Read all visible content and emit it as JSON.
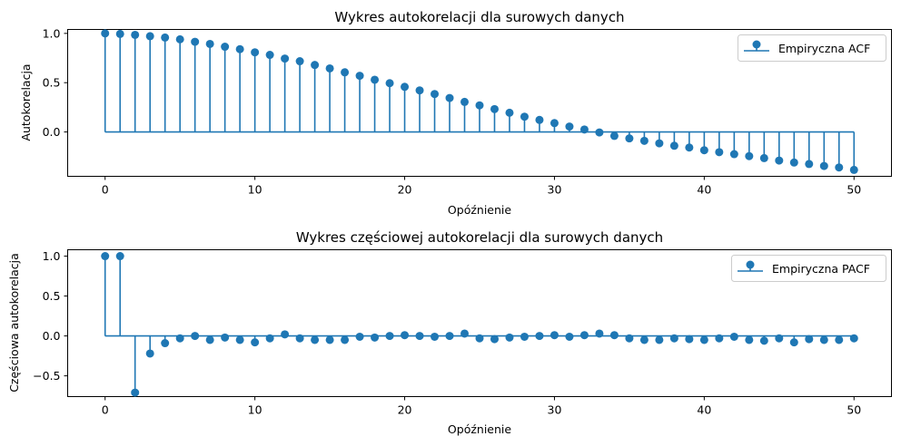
{
  "chart_data": [
    {
      "type": "stem",
      "title": "Wykres autokorelacji dla surowych danych",
      "xlabel": "Opóźnienie",
      "ylabel": "Autokorelacja",
      "xlim": [
        -2.5,
        52.5
      ],
      "ylim": [
        -0.45,
        1.04
      ],
      "xticks": [
        0,
        10,
        20,
        30,
        40,
        50
      ],
      "yticks": [
        0.0,
        0.5,
        1.0
      ],
      "ytick_labels": [
        "0.0",
        "0.5",
        "1.0"
      ],
      "grid": false,
      "legend_position": "top-right",
      "color": "#1f77b4",
      "series": [
        {
          "name": "Empiryczna ACF",
          "x": [
            0,
            1,
            2,
            3,
            4,
            5,
            6,
            7,
            8,
            9,
            10,
            11,
            12,
            13,
            14,
            15,
            16,
            17,
            18,
            19,
            20,
            21,
            22,
            23,
            24,
            25,
            26,
            27,
            28,
            29,
            30,
            31,
            32,
            33,
            34,
            35,
            36,
            37,
            38,
            39,
            40,
            41,
            42,
            43,
            44,
            45,
            46,
            47,
            48,
            49,
            50
          ],
          "values": [
            1.0,
            0.995,
            0.985,
            0.972,
            0.958,
            0.94,
            0.915,
            0.893,
            0.865,
            0.84,
            0.808,
            0.782,
            0.745,
            0.718,
            0.68,
            0.645,
            0.605,
            0.57,
            0.53,
            0.495,
            0.458,
            0.422,
            0.385,
            0.345,
            0.305,
            0.27,
            0.232,
            0.195,
            0.155,
            0.122,
            0.09,
            0.055,
            0.025,
            -0.005,
            -0.04,
            -0.065,
            -0.09,
            -0.115,
            -0.14,
            -0.158,
            -0.185,
            -0.205,
            -0.225,
            -0.245,
            -0.265,
            -0.29,
            -0.31,
            -0.325,
            -0.345,
            -0.36,
            -0.385
          ]
        }
      ]
    },
    {
      "type": "stem",
      "title": "Wykres częściowej autokorelacji dla surowych danych",
      "xlabel": "Opóźnienie",
      "ylabel": "Częściowa autokorelacja",
      "xlim": [
        -2.5,
        52.5
      ],
      "ylim": [
        -0.76,
        1.08
      ],
      "xticks": [
        0,
        10,
        20,
        30,
        40,
        50
      ],
      "yticks": [
        -0.5,
        0.0,
        0.5,
        1.0
      ],
      "ytick_labels": [
        "−0.5",
        "0.0",
        "0.5",
        "1.0"
      ],
      "grid": false,
      "legend_position": "top-right",
      "color": "#1f77b4",
      "series": [
        {
          "name": "Empiryczna PACF",
          "x": [
            0,
            1,
            2,
            3,
            4,
            5,
            6,
            7,
            8,
            9,
            10,
            11,
            12,
            13,
            14,
            15,
            16,
            17,
            18,
            19,
            20,
            21,
            22,
            23,
            24,
            25,
            26,
            27,
            28,
            29,
            30,
            31,
            32,
            33,
            34,
            35,
            36,
            37,
            38,
            39,
            40,
            41,
            42,
            43,
            44,
            45,
            46,
            47,
            48,
            49,
            50
          ],
          "values": [
            1.0,
            1.0,
            -0.71,
            -0.22,
            -0.09,
            -0.03,
            0.0,
            -0.05,
            -0.02,
            -0.05,
            -0.08,
            -0.03,
            0.02,
            -0.03,
            -0.05,
            -0.05,
            -0.05,
            -0.01,
            -0.02,
            0.0,
            0.01,
            0.0,
            -0.01,
            0.0,
            0.03,
            -0.03,
            -0.04,
            -0.02,
            -0.01,
            0.0,
            0.01,
            -0.01,
            0.01,
            0.03,
            0.01,
            -0.03,
            -0.05,
            -0.05,
            -0.03,
            -0.04,
            -0.05,
            -0.03,
            -0.01,
            -0.05,
            -0.06,
            -0.03,
            -0.08,
            -0.04,
            -0.05,
            -0.05,
            -0.03
          ]
        }
      ]
    }
  ]
}
